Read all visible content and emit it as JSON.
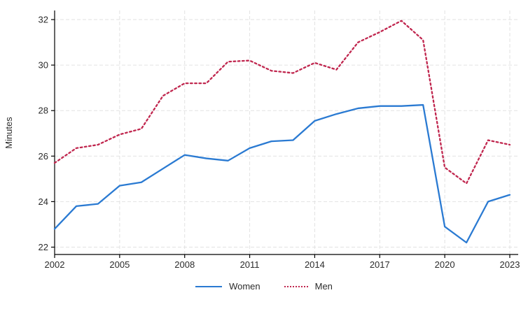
{
  "chart_data": {
    "type": "line",
    "title": "",
    "xlabel": "",
    "ylabel": "Minutes",
    "x": [
      2002,
      2003,
      2004,
      2005,
      2006,
      2007,
      2008,
      2009,
      2010,
      2011,
      2012,
      2013,
      2014,
      2015,
      2016,
      2017,
      2018,
      2019,
      2020,
      2021,
      2022,
      2023
    ],
    "series": [
      {
        "name": "Women",
        "color": "#2a7ad2",
        "style": "solid",
        "values": [
          22.8,
          23.8,
          23.9,
          24.7,
          24.85,
          25.45,
          26.05,
          25.9,
          25.8,
          26.35,
          26.65,
          26.7,
          27.55,
          27.85,
          28.1,
          28.2,
          28.2,
          28.25,
          22.9,
          22.2,
          24.0,
          24.3
        ]
      },
      {
        "name": "Men",
        "color": "#c0264e",
        "style": "dotted",
        "values": [
          25.7,
          26.35,
          26.5,
          26.95,
          27.2,
          28.65,
          29.2,
          29.2,
          30.15,
          30.2,
          29.75,
          29.65,
          30.1,
          29.8,
          31.0,
          31.45,
          31.95,
          31.1,
          25.5,
          24.8,
          26.7,
          26.5
        ]
      }
    ],
    "xlim": [
      2002,
      2023
    ],
    "ylim": [
      22,
      32
    ],
    "xticks": [
      2002,
      2005,
      2008,
      2011,
      2014,
      2017,
      2020,
      2023
    ],
    "yticks": [
      22,
      24,
      26,
      28,
      30,
      32
    ],
    "grid": true,
    "grid_color": "#e2e2e2",
    "axis_color": "#000000",
    "tick_label_color": "#2b2b2b",
    "legend_position": "bottom"
  }
}
